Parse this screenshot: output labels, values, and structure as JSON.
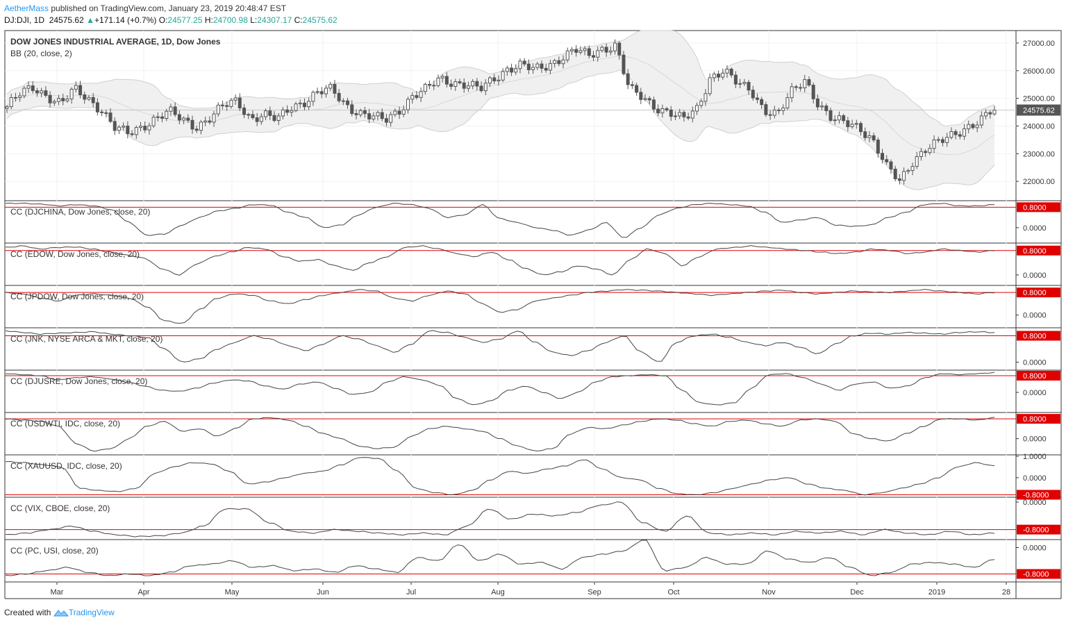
{
  "header": {
    "author": "AetherMass",
    "published": "published on TradingView.com, January 23, 2019 20:48:47 EST",
    "symbol": "DJ:DJI, 1D",
    "price": "24575.62",
    "change": "+171.14 (+0.7%)",
    "o_label": "O:",
    "o_value": "24577.25",
    "h_label": "H:",
    "h_value": "24700.98",
    "l_label": "L:",
    "l_value": "24307.17",
    "c_label": "C:",
    "c_value": "24575.62"
  },
  "footer": {
    "created": "Created with",
    "brand": "TradingView"
  },
  "colors": {
    "candle": "#555555",
    "correlation_line": "#444444",
    "threshold": "#e00000",
    "band_fill": "#f0f0f0"
  },
  "chart_data": {
    "type": "candlestick",
    "x_ticks": [
      "Mar",
      "Apr",
      "May",
      "Jun",
      "Jul",
      "Aug",
      "Sep",
      "Oct",
      "Nov",
      "Dec",
      "2019",
      "28"
    ],
    "main": {
      "title": "DOW JONES INDUSTRIAL AVERAGE, 1D, Dow Jones",
      "indicator": "BB (20, close, 2)",
      "y_ticks": [
        "27000.00",
        "26000.00",
        "25000.00",
        "24000.00",
        "23000.00",
        "22000.00"
      ],
      "last_price": "24575.62",
      "close_anchors": [
        24700,
        25150,
        25400,
        25100,
        24800,
        25300,
        25000,
        24600,
        23900,
        23700,
        24000,
        24300,
        24500,
        24200,
        24000,
        24300,
        24700,
        24900,
        24300,
        24400,
        24200,
        24700,
        24900,
        25200,
        25300,
        24800,
        24500,
        24300,
        24200,
        24600,
        25100,
        25300,
        25700,
        25600,
        25500,
        25300,
        25700,
        26100,
        26200,
        26000,
        26200,
        26500,
        26750,
        26500,
        26800,
        26950,
        25300,
        25000,
        24700,
        24500,
        24200,
        24600,
        25800,
        26000,
        25500,
        25300,
        24600,
        24400,
        25200,
        25700,
        24800,
        24200,
        24100,
        24000,
        23500,
        22500,
        22000,
        22800,
        23200,
        23400,
        23700,
        24000,
        24200,
        24600
      ],
      "bands_approx": {
        "upper_peak": 26950,
        "lower_trough": 21900
      }
    },
    "panes": [
      {
        "title": "CC (DJCHINA, Dow Jones, close, 20)",
        "threshold": "0.8000",
        "ticks": [
          "0.0000"
        ],
        "ylim": [
          -0.55,
          1.0
        ],
        "values": [
          0.95,
          0.95,
          0.92,
          0.85,
          0.9,
          0.85,
          0.7,
          0.2,
          -0.3,
          -0.25,
          0.1,
          0.4,
          0.65,
          0.75,
          0.9,
          0.88,
          0.6,
          0.4,
          0.0,
          0.1,
          0.5,
          0.8,
          0.95,
          0.9,
          0.75,
          0.4,
          0.5,
          0.9,
          0.35,
          0.2,
          0.0,
          -0.1,
          -0.3,
          -0.1,
          0.2,
          -0.4,
          0.0,
          0.5,
          0.75,
          0.9,
          0.95,
          0.9,
          0.85,
          0.6,
          0.2,
          0.3,
          0.4,
          0.1,
          0.05,
          0.1,
          0.4,
          0.6,
          0.9,
          0.95,
          0.85,
          0.85,
          0.9
        ]
      },
      {
        "title": "CC (EDOW, Dow Jones, close, 20)",
        "threshold": "0.8000",
        "ticks": [
          "0.0000"
        ],
        "ylim": [
          -0.3,
          1.0
        ],
        "values": [
          0.9,
          0.95,
          0.85,
          0.9,
          0.92,
          0.85,
          0.75,
          0.65,
          0.55,
          0.2,
          0.0,
          0.35,
          0.6,
          0.75,
          0.9,
          0.85,
          0.6,
          0.45,
          0.5,
          0.3,
          0.15,
          0.4,
          0.6,
          0.9,
          0.95,
          0.85,
          0.7,
          0.6,
          0.75,
          0.5,
          0.2,
          0.0,
          0.1,
          0.3,
          0.2,
          0.0,
          0.5,
          0.85,
          0.7,
          0.3,
          0.6,
          0.85,
          0.9,
          0.95,
          0.9,
          0.85,
          0.8,
          0.75,
          0.7,
          0.75,
          0.85,
          0.8,
          0.7,
          0.75,
          0.85,
          0.8,
          0.75,
          0.8
        ]
      },
      {
        "title": "CC (JPDOW, Dow Jones, close, 20)",
        "threshold": "0.8000",
        "ticks": [
          "0.0000"
        ],
        "ylim": [
          -0.4,
          1.0
        ],
        "values": [
          0.8,
          0.75,
          0.6,
          0.5,
          0.7,
          0.75,
          0.7,
          0.6,
          0.3,
          -0.2,
          -0.3,
          0.2,
          0.6,
          0.75,
          0.7,
          0.5,
          0.4,
          0.55,
          0.7,
          0.8,
          0.9,
          0.85,
          0.6,
          0.5,
          0.7,
          0.85,
          0.75,
          0.4,
          0.1,
          0.2,
          0.5,
          0.6,
          0.7,
          0.8,
          0.85,
          0.9,
          0.88,
          0.85,
          0.8,
          0.75,
          0.7,
          0.75,
          0.8,
          0.85,
          0.88,
          0.8,
          0.75,
          0.8,
          0.85,
          0.82,
          0.8,
          0.85,
          0.9,
          0.85,
          0.8,
          0.75,
          0.8
        ]
      },
      {
        "title": "CC (JNK, NYSE ARCA & MKT, close, 20)",
        "threshold": "0.8000",
        "ticks": [
          "0.0000"
        ],
        "ylim": [
          -0.2,
          1.0
        ],
        "values": [
          0.95,
          0.9,
          0.85,
          0.88,
          0.9,
          0.92,
          0.85,
          0.8,
          0.75,
          0.4,
          0.0,
          0.1,
          0.4,
          0.6,
          0.8,
          0.7,
          0.5,
          0.35,
          0.55,
          0.8,
          0.7,
          0.5,
          0.3,
          0.55,
          0.95,
          0.9,
          0.75,
          0.6,
          0.7,
          0.95,
          0.6,
          0.3,
          0.2,
          0.35,
          0.6,
          0.8,
          0.3,
          0.0,
          0.6,
          0.8,
          0.85,
          0.75,
          0.6,
          0.5,
          0.6,
          0.45,
          0.25,
          0.55,
          0.8,
          0.88,
          0.85,
          0.9,
          0.88,
          0.85,
          0.9,
          0.92,
          0.9
        ]
      },
      {
        "title": "CC (DJUSRE, Dow Jones, close, 20)",
        "threshold": "0.8000",
        "ticks": [
          "0.0000"
        ],
        "ylim": [
          -0.9,
          1.0
        ],
        "values": [
          0.9,
          0.85,
          0.8,
          0.6,
          0.7,
          0.75,
          0.65,
          0.5,
          0.3,
          0.1,
          0.05,
          0.2,
          0.45,
          0.6,
          0.55,
          0.3,
          0.15,
          0.4,
          0.5,
          0.2,
          -0.1,
          0.0,
          0.5,
          0.75,
          0.6,
          0.35,
          -0.3,
          -0.6,
          -0.4,
          0.1,
          0.3,
          0.0,
          -0.3,
          0.0,
          0.5,
          0.75,
          0.8,
          0.85,
          0.8,
          0.1,
          -0.5,
          -0.6,
          -0.5,
          0.2,
          0.85,
          0.9,
          0.7,
          0.4,
          0.1,
          0.4,
          0.5,
          0.2,
          0.3,
          0.7,
          0.9,
          0.85,
          0.9,
          0.95
        ]
      },
      {
        "title": "CC (USDWTI, IDC, close, 20)",
        "threshold": "0.8000",
        "ticks": [
          "0.0000"
        ],
        "ylim": [
          -0.6,
          1.0
        ],
        "values": [
          0.8,
          0.75,
          0.7,
          0.5,
          -0.2,
          -0.5,
          -0.4,
          0.0,
          0.5,
          0.7,
          0.3,
          0.4,
          0.1,
          0.4,
          0.8,
          0.85,
          0.75,
          0.5,
          0.2,
          0.0,
          -0.3,
          -0.4,
          -0.35,
          0.1,
          0.4,
          0.5,
          0.4,
          0.3,
          0.0,
          -0.3,
          -0.5,
          -0.4,
          0.2,
          0.45,
          0.4,
          0.55,
          0.7,
          0.8,
          0.75,
          0.6,
          0.5,
          0.7,
          0.75,
          0.6,
          0.5,
          0.75,
          0.8,
          0.7,
          0.2,
          0.0,
          -0.1,
          0.2,
          0.5,
          0.8,
          0.8,
          0.75,
          0.85
        ]
      },
      {
        "title": "CC (XAUUSD, IDC, close, 20)",
        "threshold": "-0.8000",
        "ticks": [
          "1.0000",
          "0.0000"
        ],
        "ylim": [
          -0.85,
          1.0
        ],
        "values": [
          0.75,
          0.7,
          0.6,
          0.5,
          -0.5,
          -0.6,
          -0.65,
          -0.5,
          0.2,
          0.5,
          0.7,
          0.65,
          0.3,
          -0.3,
          -0.2,
          0.0,
          0.2,
          0.3,
          0.6,
          0.95,
          0.9,
          0.3,
          -0.5,
          -0.7,
          -0.8,
          -0.6,
          -0.1,
          0.3,
          0.2,
          0.4,
          0.55,
          0.85,
          0.4,
          0.0,
          -0.1,
          -0.5,
          -0.75,
          -0.8,
          -0.7,
          -0.5,
          -0.3,
          -0.1,
          0.0,
          -0.3,
          -0.5,
          -0.6,
          -0.8,
          -0.7,
          -0.5,
          -0.3,
          0.0,
          0.5,
          0.7,
          0.55
        ]
      },
      {
        "title": "CC (VIX, CBOE, close, 20)",
        "threshold": "-0.8000",
        "ticks": [
          "0.0000"
        ],
        "ylim": [
          -1.05,
          0.1
        ],
        "values": [
          -0.95,
          -0.9,
          -0.8,
          -0.7,
          -0.85,
          -0.95,
          -1.0,
          -0.98,
          -0.9,
          -0.7,
          -0.2,
          -0.2,
          -0.6,
          -0.85,
          -0.9,
          -0.8,
          -0.85,
          -0.9,
          -0.95,
          -0.9,
          -0.95,
          -0.7,
          -0.2,
          -0.5,
          -0.35,
          -0.4,
          -0.3,
          -0.1,
          0.0,
          -0.6,
          -0.85,
          -0.4,
          -0.9,
          -0.95,
          -0.9,
          -0.95,
          -0.85,
          -0.9,
          -0.85,
          -0.95,
          -0.8,
          -0.9,
          -0.95,
          -0.85,
          -0.95,
          -0.9
        ]
      },
      {
        "title": "CC (PC, USI, close, 20)",
        "threshold": "-0.8000",
        "ticks": [
          "0.0000"
        ],
        "ylim": [
          -1.0,
          0.2
        ],
        "values": [
          -0.85,
          -0.8,
          -0.7,
          -0.6,
          -0.75,
          -0.85,
          -0.8,
          -0.85,
          -0.75,
          -0.55,
          -0.5,
          -0.4,
          -0.6,
          -0.55,
          -0.7,
          -0.65,
          -0.75,
          -0.55,
          -0.65,
          -0.75,
          -0.3,
          -0.4,
          0.1,
          -0.4,
          -0.2,
          -0.5,
          -0.45,
          -0.65,
          -0.3,
          -0.2,
          -0.1,
          0.25,
          -0.7,
          -0.6,
          -0.3,
          -0.5,
          -0.5,
          -0.1,
          -0.35,
          -0.45,
          -0.3,
          -0.6,
          -0.85,
          -0.75,
          -0.5,
          -0.45,
          -0.5,
          -0.6,
          -0.35
        ]
      }
    ]
  }
}
